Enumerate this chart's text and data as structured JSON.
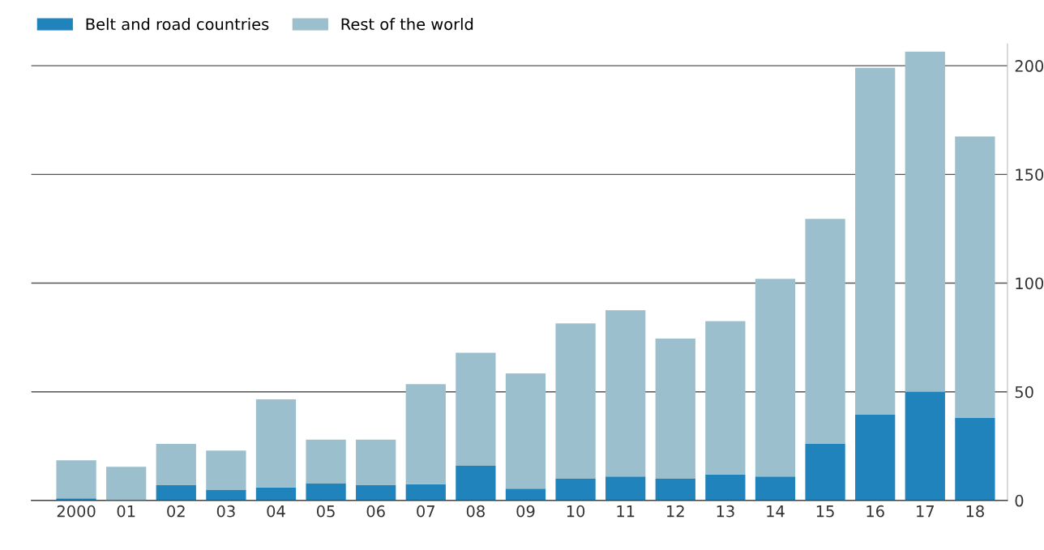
{
  "chart_data": {
    "type": "bar",
    "stacked": true,
    "categories": [
      "2000",
      "01",
      "02",
      "03",
      "04",
      "05",
      "06",
      "07",
      "08",
      "09",
      "10",
      "11",
      "12",
      "13",
      "14",
      "15",
      "16",
      "17",
      "18"
    ],
    "series": [
      {
        "name": "Belt and road countries",
        "color": "#2183bb",
        "values": [
          1,
          0,
          7,
          5,
          6,
          8,
          7,
          7.5,
          16,
          5.5,
          10,
          11,
          10,
          12,
          11,
          26,
          39.5,
          50,
          38
        ]
      },
      {
        "name": "Rest of the world",
        "color": "#9bbfcc",
        "values": [
          17.5,
          15.5,
          19,
          18,
          40.5,
          20,
          21,
          46,
          52,
          53,
          71.5,
          76.5,
          64.5,
          70.5,
          91,
          103.5,
          159.5,
          156.5,
          129.5
        ]
      }
    ],
    "ylim": [
      0,
      210
    ],
    "yticks": [
      0,
      50,
      100,
      150,
      200
    ],
    "grid": "y",
    "legend": "top left"
  }
}
